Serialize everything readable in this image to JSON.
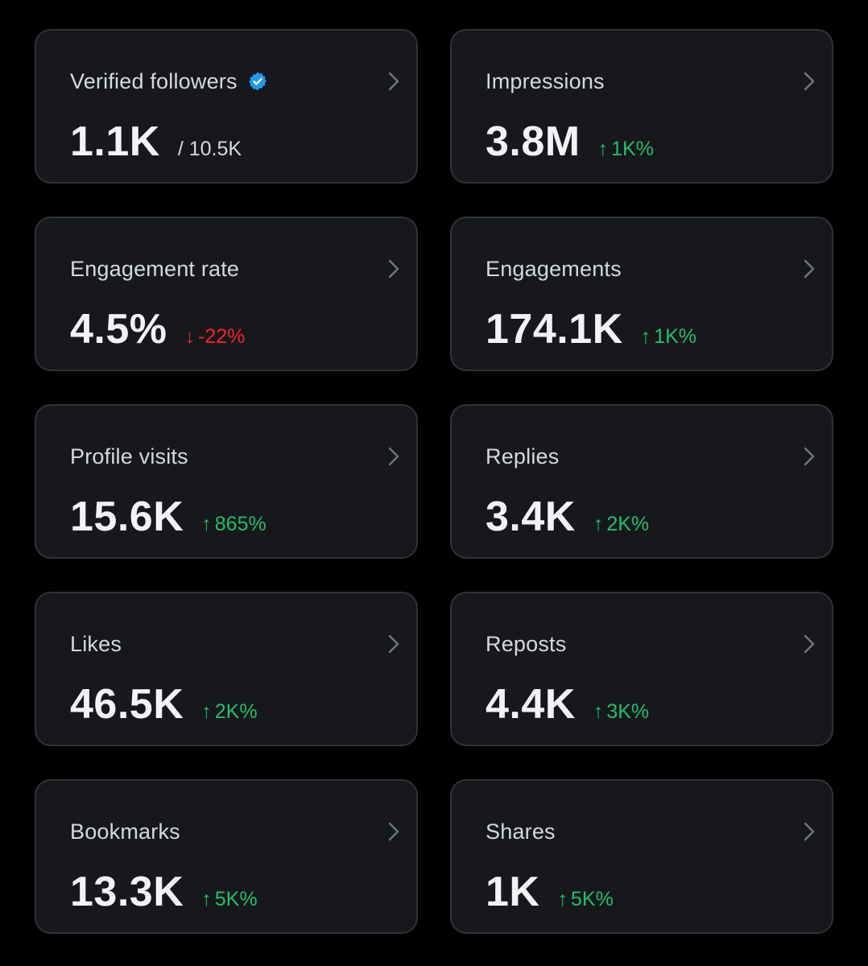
{
  "colors": {
    "background": "#000000",
    "card": "#16181c",
    "border": "#2f3336",
    "positive": "#1fbf6a",
    "negative": "#f4212e",
    "verified": "#1d9bf0"
  },
  "icons": {
    "verified": "verified-badge-icon",
    "chevron": "chevron-right-icon",
    "up": "arrow-up-icon",
    "down": "arrow-down-icon"
  },
  "cards": [
    {
      "title": "Verified followers",
      "value": "1.1K",
      "sub": "/ 10.5K"
    },
    {
      "title": "Impressions",
      "value": "3.8M",
      "delta": "1K%",
      "arrow": "↑"
    },
    {
      "title": "Engagement rate",
      "value": "4.5%",
      "delta": "-22%",
      "arrow": "↓"
    },
    {
      "title": "Engagements",
      "value": "174.1K",
      "delta": "1K%",
      "arrow": "↑"
    },
    {
      "title": "Profile visits",
      "value": "15.6K",
      "delta": "865%",
      "arrow": "↑"
    },
    {
      "title": "Replies",
      "value": "3.4K",
      "delta": "2K%",
      "arrow": "↑"
    },
    {
      "title": "Likes",
      "value": "46.5K",
      "delta": "2K%",
      "arrow": "↑"
    },
    {
      "title": "Reposts",
      "value": "4.4K",
      "delta": "3K%",
      "arrow": "↑"
    },
    {
      "title": "Bookmarks",
      "value": "13.3K",
      "delta": "5K%",
      "arrow": "↑"
    },
    {
      "title": "Shares",
      "value": "1K",
      "delta": "5K%",
      "arrow": "↑"
    }
  ]
}
